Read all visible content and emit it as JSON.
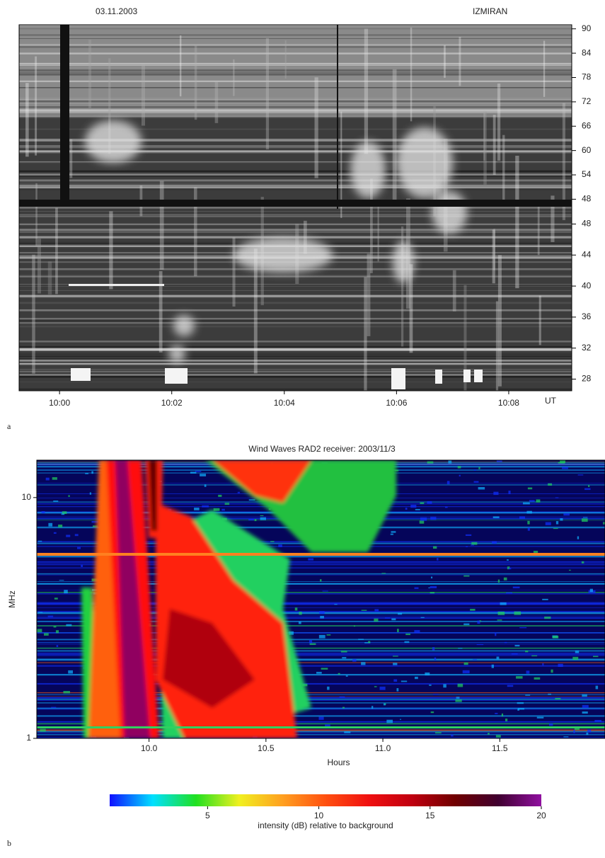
{
  "chart_data": [
    {
      "type": "spectrogram",
      "panel_label": "a",
      "annotations": [
        "03.11.2003",
        "IZMIRAN"
      ],
      "xlim": [
        9.988,
        10.152
      ],
      "ylim": [
        46.5,
        91
      ],
      "yticks": [
        90,
        84,
        78,
        72,
        66,
        60,
        54,
        48
      ],
      "axis_side": "right",
      "colormap": "gray"
    },
    {
      "type": "spectrogram",
      "xlim": [
        9.988,
        10.152
      ],
      "xticks": [
        {
          "value": 10,
          "label": "10:00"
        },
        {
          "value": 10.0333,
          "label": "10:02"
        },
        {
          "value": 10.0667,
          "label": "10:04"
        },
        {
          "value": 10.1,
          "label": "10:06"
        },
        {
          "value": 10.1333,
          "label": "10:08"
        }
      ],
      "xlabel": "UT",
      "ylim": [
        26.5,
        49.5
      ],
      "yticks": [
        48,
        44,
        40,
        36,
        32,
        28
      ],
      "axis_side": "right",
      "colormap": "gray"
    },
    {
      "type": "spectrogram",
      "panel_label": "b",
      "title": "Wind Waves RAD2 receiver: 2003/11/3",
      "xlim": [
        9.52,
        11.95
      ],
      "xticks": [
        {
          "value": 10,
          "label": "10.0"
        },
        {
          "value": 10.5,
          "label": "10.5"
        },
        {
          "value": 11,
          "label": "11.0"
        },
        {
          "value": 11.5,
          "label": "11.5"
        }
      ],
      "xlabel": "Hours",
      "ylabel": "MHz",
      "ylog": true,
      "ylim": [
        1,
        14.3
      ],
      "yticks": [
        1,
        10
      ],
      "axis_side": "left",
      "colormap": "jet",
      "colorbar": {
        "clim": [
          0.6,
          20
        ],
        "cticks": [
          5,
          10,
          15,
          20
        ],
        "label": "intensity (dB) relative to background",
        "colors": [
          "#1010ff",
          "#00e0ff",
          "#20e020",
          "#f0f020",
          "#ffa020",
          "#ff5010",
          "#f01010",
          "#c00010",
          "#700000",
          "#400030",
          "#9010a0"
        ]
      }
    }
  ]
}
